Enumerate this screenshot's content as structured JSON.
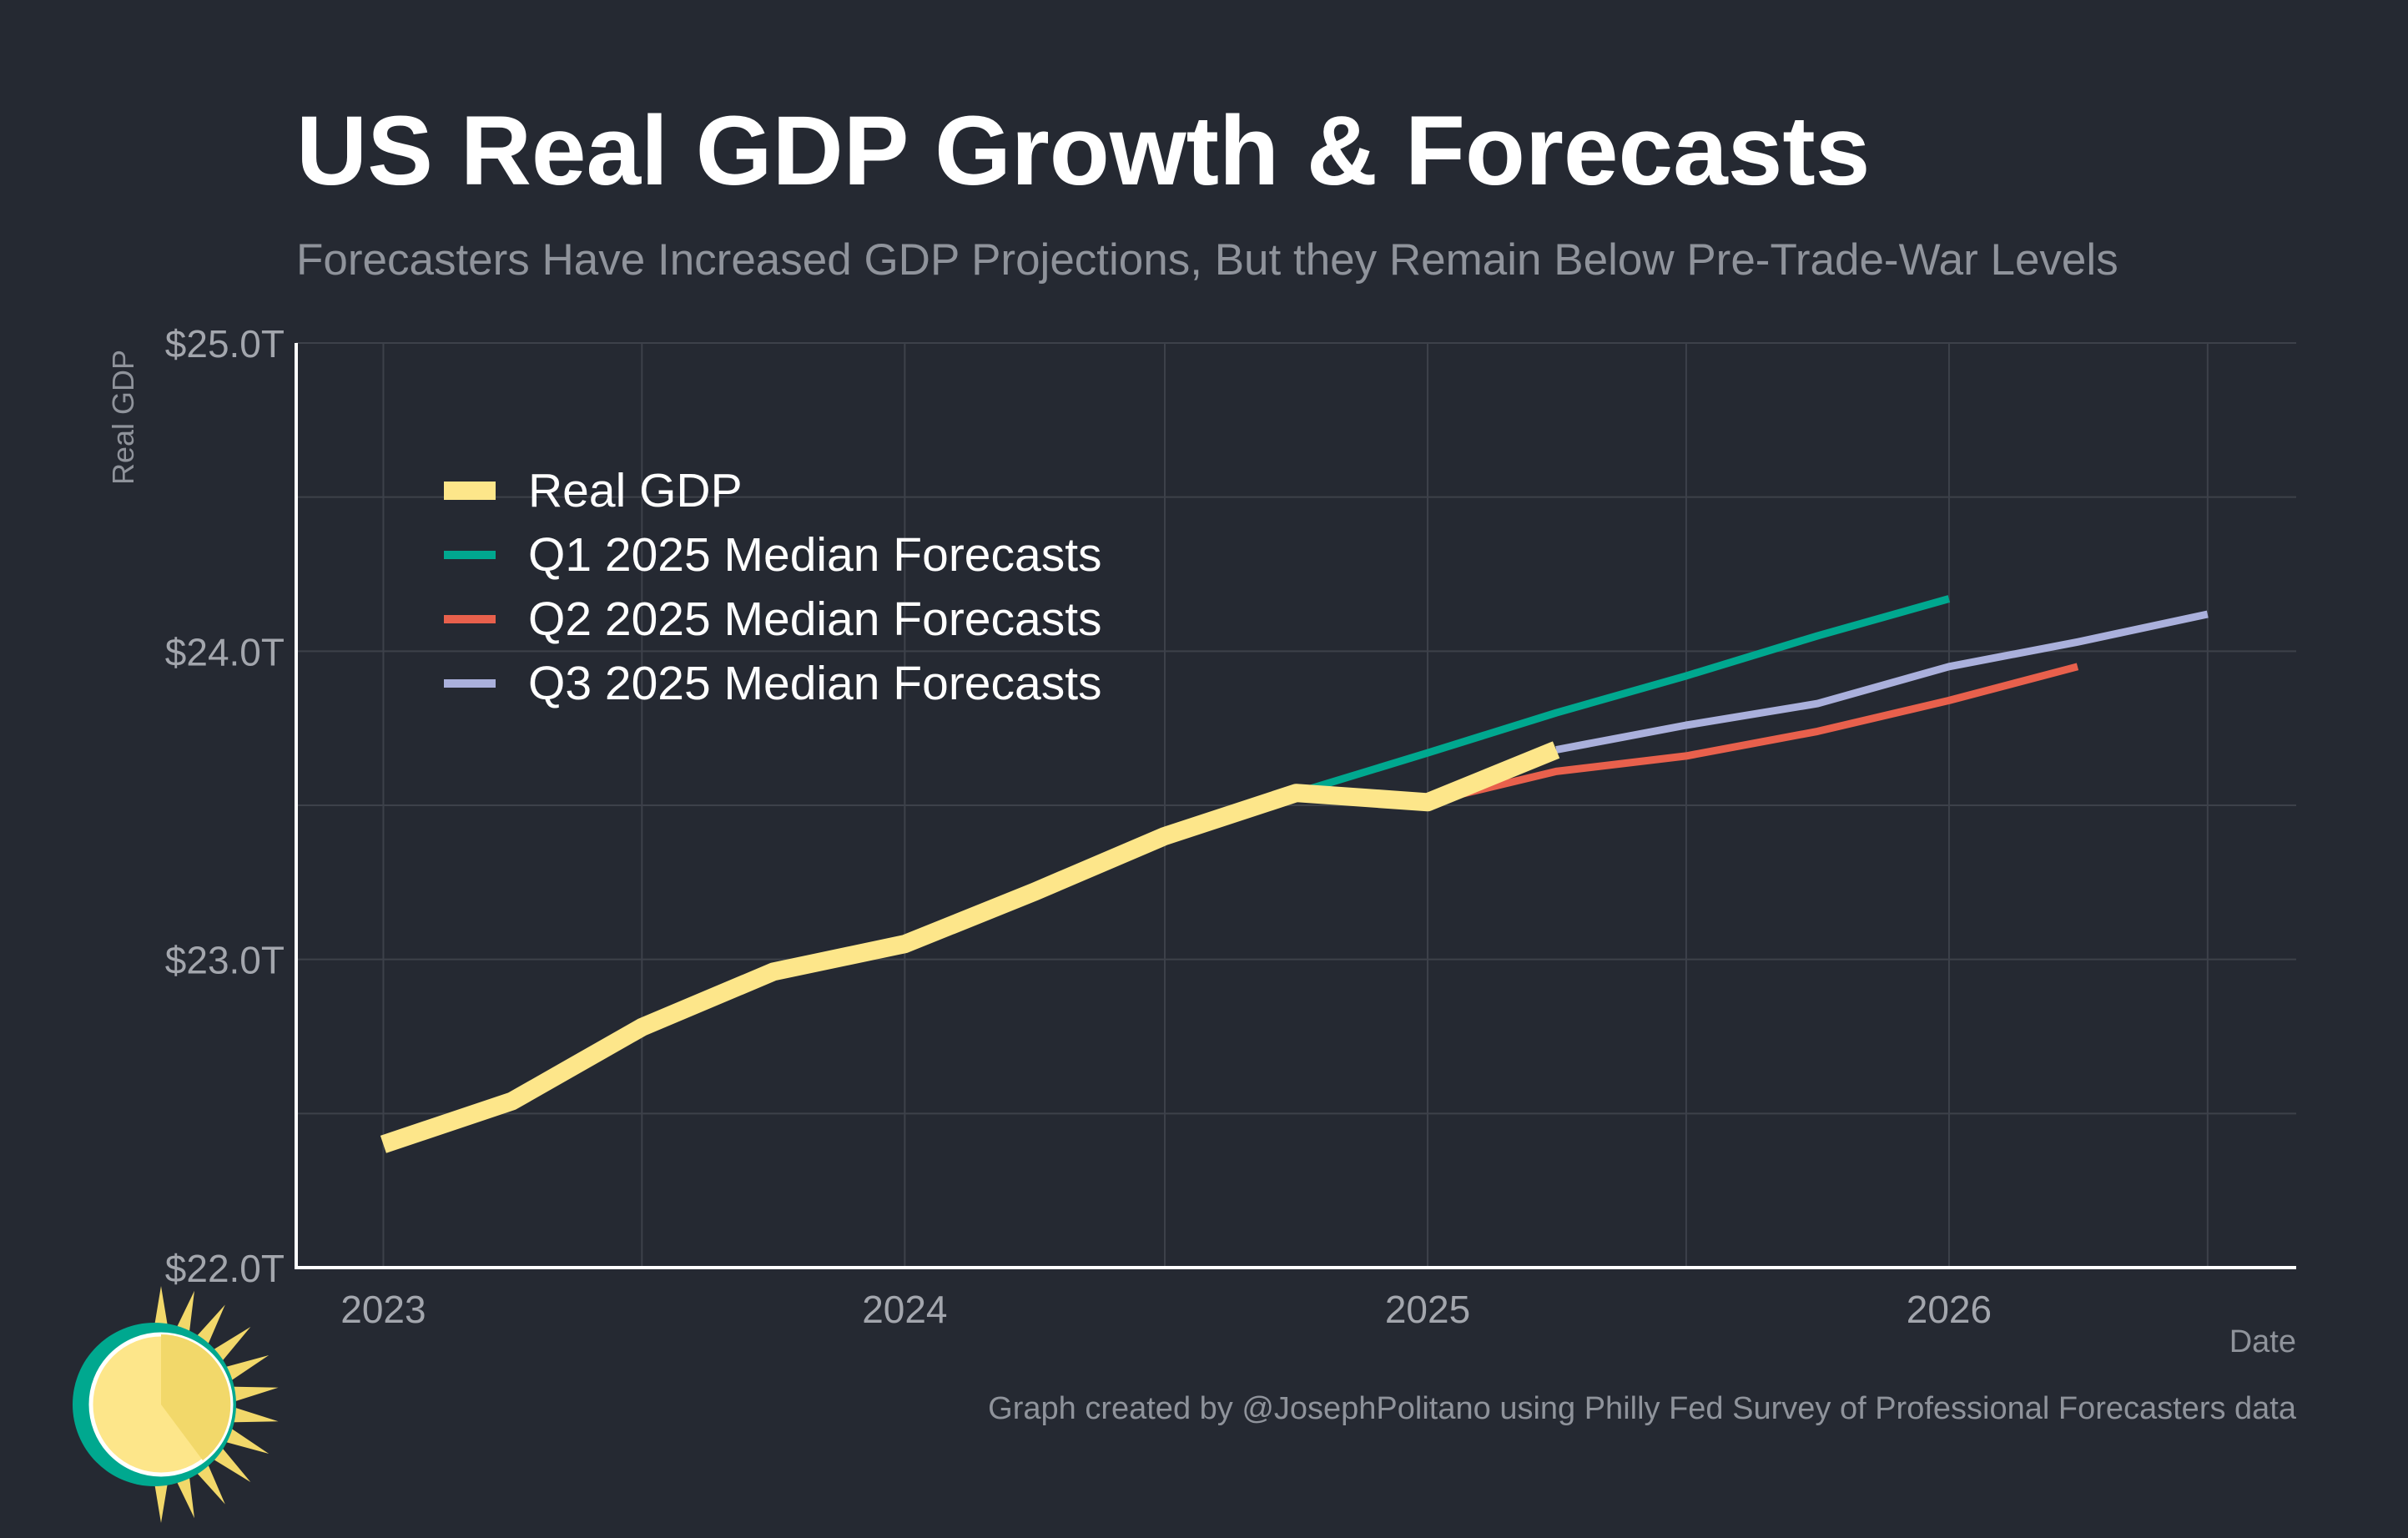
{
  "colors": {
    "background": "#252932",
    "grid": "#3d414a",
    "axis": "#ffffff",
    "real_gdp": "#fde68a",
    "q1": "#00a88f",
    "q2": "#e8604c",
    "q3": "#aab0dc"
  },
  "chart_data": {
    "type": "line",
    "title": "US Real GDP Growth & Forecasts",
    "subtitle": "Forecasters Have Increased GDP Projections, But they Remain Below Pre-Trade-War Levels",
    "xlabel": "Date",
    "ylabel": "Real GDP",
    "xlim": [
      "2022-11-01",
      "2026-09-01"
    ],
    "ylim": [
      22.0,
      25.0
    ],
    "x_ticks": [
      "2023",
      "2024",
      "2025",
      "2026"
    ],
    "y_ticks": [
      "$22.0T",
      "$23.0T",
      "$24.0T",
      "$25.0T"
    ],
    "grid": true,
    "legend_position": "top-left",
    "series": [
      {
        "name": "Real GDP",
        "color": "#fde68a",
        "x": [
          "2023-01-01",
          "2023-04-01",
          "2023-07-01",
          "2023-10-01",
          "2024-01-01",
          "2024-04-01",
          "2024-07-01",
          "2024-10-01",
          "2025-01-01",
          "2025-04-01"
        ],
        "y": [
          22.4,
          22.54,
          22.78,
          22.96,
          23.05,
          23.22,
          23.4,
          23.54,
          23.51,
          23.68
        ]
      },
      {
        "name": "Q1 2025 Median Forecasts",
        "color": "#00a88f",
        "x": [
          "2024-10-01",
          "2025-01-01",
          "2025-04-01",
          "2025-07-01",
          "2025-10-01",
          "2026-01-01"
        ],
        "y": [
          23.54,
          23.67,
          23.8,
          23.92,
          24.05,
          24.17
        ]
      },
      {
        "name": "Q2 2025 Median Forecasts",
        "color": "#e8604c",
        "x": [
          "2025-01-01",
          "2025-04-01",
          "2025-07-01",
          "2025-10-01",
          "2026-01-01",
          "2026-04-01"
        ],
        "y": [
          23.51,
          23.61,
          23.66,
          23.74,
          23.84,
          23.95
        ]
      },
      {
        "name": "Q3 2025 Median Forecasts",
        "color": "#aab0dc",
        "x": [
          "2025-04-01",
          "2025-07-01",
          "2025-10-01",
          "2026-01-01",
          "2026-04-01",
          "2026-07-01"
        ],
        "y": [
          23.68,
          23.76,
          23.83,
          23.95,
          24.03,
          24.12
        ]
      }
    ]
  },
  "caption": "Graph created by @JosephPolitano using Philly Fed Survey of Professional Forecasters data",
  "logo": {
    "icon": "sun-icon"
  }
}
